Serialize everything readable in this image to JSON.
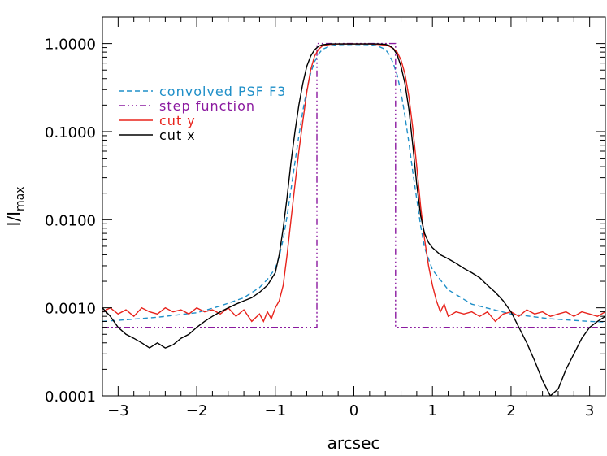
{
  "chart_data": {
    "type": "line",
    "title": "",
    "xlabel": "arcsec",
    "ylabel": "I/I",
    "ylabel_sub": "max",
    "xlim": [
      -3.2,
      3.2
    ],
    "ylim": [
      0.0001,
      2.0
    ],
    "yscale": "log",
    "xticks": [
      -3,
      -2,
      -1,
      0,
      1,
      2,
      3
    ],
    "xtick_labels": [
      "−3",
      "−2",
      "−1",
      "0",
      "1",
      "2",
      "3"
    ],
    "yticks": [
      0.0001,
      0.001,
      0.01,
      0.1,
      1.0
    ],
    "ytick_labels": [
      "0.0001",
      "0.0010",
      "0.0100",
      "0.1000",
      "1.0000"
    ],
    "grid": false,
    "legend_position": "upper-left",
    "series": [
      {
        "name": "convolved PSF F3",
        "color": "#1f8fc8",
        "style": "dashed",
        "x": [
          -3.2,
          -3.0,
          -2.5,
          -2.0,
          -1.7,
          -1.4,
          -1.2,
          -1.1,
          -1.0,
          -0.95,
          -0.9,
          -0.85,
          -0.8,
          -0.75,
          -0.7,
          -0.65,
          -0.6,
          -0.55,
          -0.5,
          -0.45,
          -0.4,
          -0.3,
          -0.2,
          0.0,
          0.2,
          0.3,
          0.4,
          0.45,
          0.5,
          0.55,
          0.6,
          0.65,
          0.7,
          0.75,
          0.8,
          0.85,
          0.9,
          1.0,
          1.2,
          1.5,
          2.0,
          2.5,
          3.0,
          3.2
        ],
        "y": [
          0.0007,
          0.00072,
          0.00078,
          0.00088,
          0.00105,
          0.0013,
          0.0017,
          0.0021,
          0.0028,
          0.0038,
          0.006,
          0.011,
          0.022,
          0.045,
          0.09,
          0.17,
          0.3,
          0.46,
          0.62,
          0.76,
          0.86,
          0.94,
          0.97,
          0.98,
          0.97,
          0.94,
          0.86,
          0.75,
          0.6,
          0.44,
          0.28,
          0.15,
          0.075,
          0.035,
          0.017,
          0.0085,
          0.0048,
          0.0027,
          0.0016,
          0.0011,
          0.00085,
          0.00075,
          0.0007,
          0.00069
        ]
      },
      {
        "name": "step function",
        "color": "#8b1aa0",
        "style": "dash-dot",
        "x": [
          -3.2,
          -0.47,
          -0.47,
          0.53,
          0.53,
          3.2
        ],
        "y": [
          0.0006,
          0.0006,
          1.0,
          1.0,
          0.0006,
          0.0006
        ]
      },
      {
        "name": "cut y",
        "color": "#e8231c",
        "style": "solid",
        "x": [
          -3.2,
          -3.1,
          -3.0,
          -2.9,
          -2.8,
          -2.7,
          -2.6,
          -2.5,
          -2.4,
          -2.3,
          -2.2,
          -2.1,
          -2.0,
          -1.9,
          -1.8,
          -1.7,
          -1.6,
          -1.5,
          -1.4,
          -1.3,
          -1.2,
          -1.15,
          -1.1,
          -1.05,
          -1.0,
          -0.95,
          -0.9,
          -0.85,
          -0.8,
          -0.75,
          -0.7,
          -0.65,
          -0.6,
          -0.55,
          -0.5,
          -0.45,
          -0.4,
          -0.3,
          -0.2,
          0.0,
          0.2,
          0.3,
          0.4,
          0.45,
          0.5,
          0.55,
          0.6,
          0.65,
          0.7,
          0.75,
          0.8,
          0.85,
          0.9,
          0.95,
          1.0,
          1.05,
          1.1,
          1.15,
          1.2,
          1.3,
          1.4,
          1.5,
          1.6,
          1.7,
          1.8,
          1.9,
          2.0,
          2.1,
          2.2,
          2.3,
          2.4,
          2.5,
          2.6,
          2.7,
          2.8,
          2.9,
          3.0,
          3.1,
          3.2
        ],
        "y": [
          0.0009,
          0.001,
          0.00085,
          0.00095,
          0.0008,
          0.001,
          0.0009,
          0.00085,
          0.001,
          0.0009,
          0.00095,
          0.00085,
          0.001,
          0.0009,
          0.00095,
          0.00085,
          0.001,
          0.0008,
          0.00095,
          0.0007,
          0.00085,
          0.0007,
          0.0009,
          0.00075,
          0.001,
          0.0012,
          0.0018,
          0.004,
          0.01,
          0.025,
          0.06,
          0.13,
          0.28,
          0.5,
          0.72,
          0.86,
          0.94,
          0.98,
          0.99,
          0.99,
          0.99,
          0.98,
          0.96,
          0.93,
          0.88,
          0.8,
          0.65,
          0.45,
          0.25,
          0.11,
          0.04,
          0.014,
          0.006,
          0.003,
          0.0018,
          0.0012,
          0.0009,
          0.0011,
          0.0008,
          0.0009,
          0.00085,
          0.0009,
          0.0008,
          0.0009,
          0.0007,
          0.00085,
          0.0009,
          0.0008,
          0.00095,
          0.00085,
          0.0009,
          0.0008,
          0.00085,
          0.0009,
          0.0008,
          0.0009,
          0.00085,
          0.0008,
          0.0009
        ]
      },
      {
        "name": "cut x",
        "color": "#000000",
        "style": "solid",
        "x": [
          -3.2,
          -3.1,
          -3.0,
          -2.9,
          -2.8,
          -2.7,
          -2.6,
          -2.5,
          -2.4,
          -2.3,
          -2.2,
          -2.1,
          -2.0,
          -1.9,
          -1.8,
          -1.7,
          -1.6,
          -1.5,
          -1.4,
          -1.3,
          -1.2,
          -1.1,
          -1.0,
          -0.95,
          -0.9,
          -0.85,
          -0.8,
          -0.75,
          -0.7,
          -0.65,
          -0.6,
          -0.55,
          -0.5,
          -0.45,
          -0.4,
          -0.3,
          -0.2,
          0.0,
          0.2,
          0.3,
          0.4,
          0.45,
          0.5,
          0.55,
          0.6,
          0.65,
          0.7,
          0.75,
          0.8,
          0.85,
          0.9,
          0.95,
          1.0,
          1.1,
          1.2,
          1.3,
          1.4,
          1.5,
          1.6,
          1.7,
          1.8,
          1.9,
          2.0,
          2.1,
          2.2,
          2.3,
          2.4,
          2.5,
          2.6,
          2.7,
          2.8,
          2.9,
          3.0,
          3.1,
          3.2
        ],
        "y": [
          0.001,
          0.0008,
          0.0006,
          0.0005,
          0.00045,
          0.0004,
          0.00035,
          0.0004,
          0.00035,
          0.00038,
          0.00045,
          0.0005,
          0.0006,
          0.0007,
          0.0008,
          0.0009,
          0.001,
          0.0011,
          0.0012,
          0.0013,
          0.0015,
          0.0018,
          0.0025,
          0.004,
          0.008,
          0.018,
          0.045,
          0.1,
          0.2,
          0.35,
          0.55,
          0.72,
          0.85,
          0.93,
          0.97,
          0.99,
          0.99,
          0.99,
          0.99,
          0.99,
          0.98,
          0.95,
          0.88,
          0.75,
          0.55,
          0.35,
          0.18,
          0.07,
          0.025,
          0.011,
          0.007,
          0.0055,
          0.0048,
          0.004,
          0.0036,
          0.0032,
          0.0028,
          0.0025,
          0.0022,
          0.0018,
          0.0015,
          0.0012,
          0.0009,
          0.0006,
          0.0004,
          0.00025,
          0.00015,
          0.0001,
          0.00012,
          0.0002,
          0.0003,
          0.00045,
          0.0006,
          0.0007,
          0.0008
        ]
      }
    ]
  }
}
